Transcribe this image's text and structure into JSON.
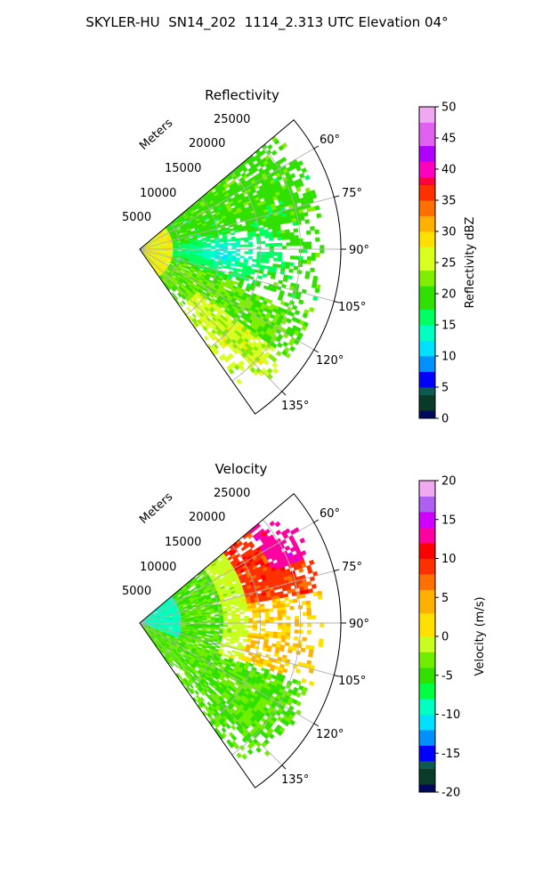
{
  "title": "SKYLER-HU  SN14_202  1114_2.313 UTC Elevation 04°",
  "range_axis_label": "Meters",
  "range_ticks": [
    "5000",
    "10000",
    "15000",
    "20000",
    "25000"
  ],
  "azimuth_ticks": [
    "60°",
    "75°",
    "90°",
    "105°",
    "120°",
    "135°"
  ],
  "chart_data": [
    {
      "type": "heatmap",
      "projection": "polar-sector",
      "title": "Reflectivity",
      "azimuth_range_deg": [
        50,
        145
      ],
      "range_limit_m": [
        0,
        25000
      ],
      "range_ticks_m": [
        5000,
        10000,
        15000,
        20000,
        25000
      ],
      "azimuth_ticks_deg": [
        60,
        75,
        90,
        105,
        120,
        135
      ],
      "grid": true,
      "colorbar": {
        "label": "Reflectivity dBZ",
        "min": 0,
        "max": 50,
        "ticks": [
          "0",
          "5",
          "10",
          "15",
          "20",
          "25",
          "30",
          "35",
          "40",
          "45",
          "50"
        ],
        "colors": [
          {
            "v": 0,
            "c": "#000a5c"
          },
          {
            "v": 1.5,
            "c": "#0a3a28"
          },
          {
            "v": 3.5,
            "c": "#0c5a50"
          },
          {
            "v": 4.5,
            "c": "#0000ff"
          },
          {
            "v": 7,
            "c": "#0090ff"
          },
          {
            "v": 10,
            "c": "#00e0ff"
          },
          {
            "v": 13,
            "c": "#00ffc0"
          },
          {
            "v": 15,
            "c": "#00ff60"
          },
          {
            "v": 18,
            "c": "#30e000"
          },
          {
            "v": 21,
            "c": "#80ee00"
          },
          {
            "v": 24,
            "c": "#d8ff20"
          },
          {
            "v": 27,
            "c": "#ffe000"
          },
          {
            "v": 30,
            "c": "#ffb000"
          },
          {
            "v": 33,
            "c": "#ff7000"
          },
          {
            "v": 35,
            "c": "#ff3000"
          },
          {
            "v": 37,
            "c": "#ff0040"
          },
          {
            "v": 39,
            "c": "#ff00c0"
          },
          {
            "v": 41,
            "c": "#b000ff"
          },
          {
            "v": 44,
            "c": "#e060f0"
          },
          {
            "v": 47,
            "c": "#f0a8f0"
          },
          {
            "v": 50,
            "c": "#fff0ff"
          }
        ]
      },
      "field": {
        "near_range_value_dbz": 27,
        "north_sector_value_dbz": 20,
        "central_core_value_dbz": 13,
        "south_sector_value_dbz": 21,
        "far_south_value_dbz": 25,
        "coverage_range_m": [
          0,
          23000
        ]
      }
    },
    {
      "type": "heatmap",
      "projection": "polar-sector",
      "title": "Velocity",
      "azimuth_range_deg": [
        50,
        145
      ],
      "range_limit_m": [
        0,
        25000
      ],
      "range_ticks_m": [
        5000,
        10000,
        15000,
        20000,
        25000
      ],
      "azimuth_ticks_deg": [
        60,
        75,
        90,
        105,
        120,
        135
      ],
      "grid": true,
      "colorbar": {
        "label": "Velocity (m/s)",
        "min": -20,
        "max": 20,
        "ticks": [
          "-20",
          "-15",
          "-10",
          "-5",
          "0",
          "5",
          "10",
          "15",
          "20"
        ],
        "colors": [
          {
            "v": -20,
            "c": "#000a5c"
          },
          {
            "v": -18.5,
            "c": "#0a3a28"
          },
          {
            "v": -16.5,
            "c": "#0c5a50"
          },
          {
            "v": -16,
            "c": "#0000ff"
          },
          {
            "v": -14,
            "c": "#0090ff"
          },
          {
            "v": -12,
            "c": "#00e0ff"
          },
          {
            "v": -10,
            "c": "#00ffc0"
          },
          {
            "v": -8,
            "c": "#00ff40"
          },
          {
            "v": -6,
            "c": "#30e000"
          },
          {
            "v": -4,
            "c": "#70ee00"
          },
          {
            "v": -2,
            "c": "#c8ff20"
          },
          {
            "v": 0,
            "c": "#ffe000"
          },
          {
            "v": 3,
            "c": "#ffb000"
          },
          {
            "v": 6,
            "c": "#ff7000"
          },
          {
            "v": 8,
            "c": "#ff3000"
          },
          {
            "v": 10,
            "c": "#ff0000"
          },
          {
            "v": 12,
            "c": "#ff00a0"
          },
          {
            "v": 14,
            "c": "#d000ff"
          },
          {
            "v": 16,
            "c": "#b060f0"
          },
          {
            "v": 18,
            "c": "#f0a8f0"
          },
          {
            "v": 20,
            "c": "#fff0ff"
          }
        ]
      },
      "field": {
        "near_range_value_ms": -9,
        "inner_band_value_ms": -4,
        "mid_band_value_ms": -1,
        "north_far_value_ms": 9,
        "north_peak_value_ms": 13,
        "east_far_value_ms": 3,
        "south_sector_value_ms": -4,
        "coverage_range_m": [
          0,
          23000
        ]
      }
    }
  ]
}
